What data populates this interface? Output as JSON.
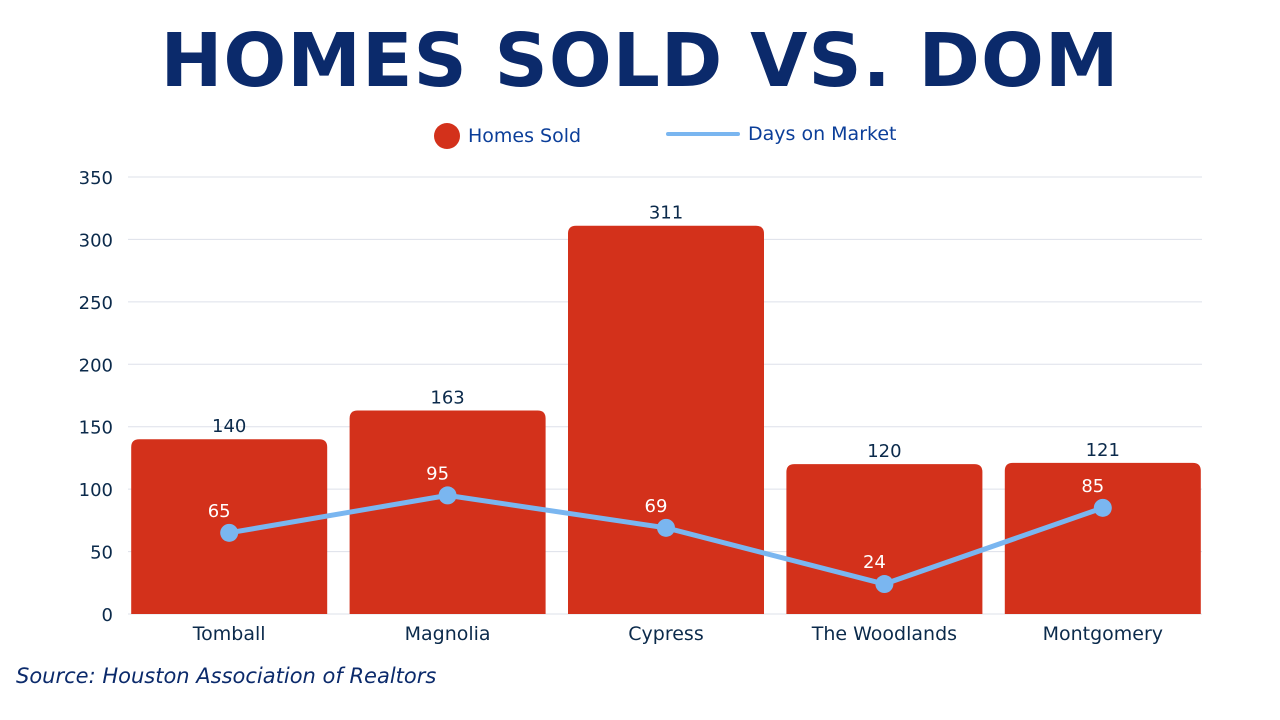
{
  "title": "HOMES SOLD VS. DOM",
  "source": "Source: Houston Association of Realtors",
  "colors": {
    "title": "#0b2a6b",
    "bar": "#d3311b",
    "line": "#7ab6f0",
    "axis_text": "#0b2a4b",
    "legend_text": "#0b3e99",
    "grid": "#dde0ea"
  },
  "legend": [
    {
      "label": "Homes Sold",
      "swatch": "dot"
    },
    {
      "label": "Days on Market",
      "swatch": "line"
    }
  ],
  "chart_data": {
    "type": "bar",
    "title": "HOMES SOLD VS. DOM",
    "categories": [
      "Tomball",
      "Magnolia",
      "Cypress",
      "The Woodlands",
      "Montgomery"
    ],
    "series": [
      {
        "name": "Homes Sold",
        "type": "bar",
        "values": [
          140,
          163,
          311,
          120,
          121
        ]
      },
      {
        "name": "Days on Market",
        "type": "line",
        "values": [
          65,
          95,
          69,
          24,
          85
        ]
      }
    ],
    "ylim": [
      0,
      350
    ],
    "yticks": [
      0,
      50,
      100,
      150,
      200,
      250,
      300,
      350
    ],
    "grid": true,
    "legend_position": "top"
  }
}
